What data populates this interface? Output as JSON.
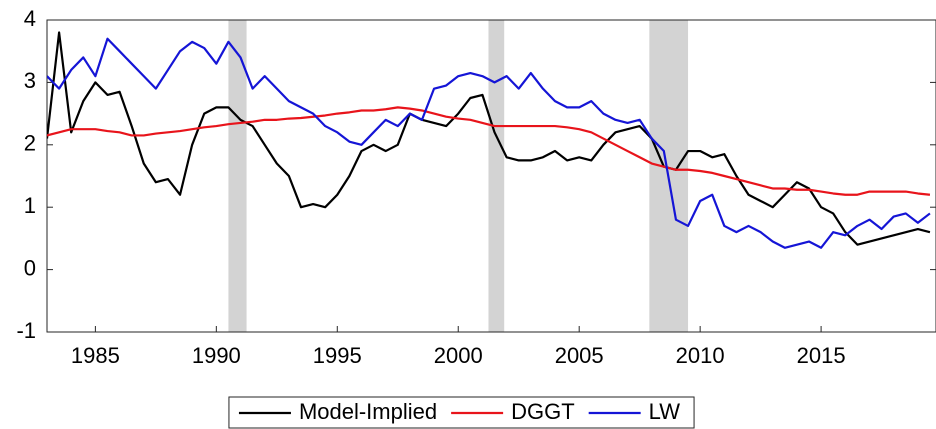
{
  "chart_data": {
    "type": "line",
    "x": [
      1983,
      1983.5,
      1984,
      1984.5,
      1985,
      1985.5,
      1986,
      1986.5,
      1987,
      1987.5,
      1988,
      1988.5,
      1989,
      1989.5,
      1990,
      1990.5,
      1991,
      1991.5,
      1992,
      1992.5,
      1993,
      1993.5,
      1994,
      1994.5,
      1995,
      1995.5,
      1996,
      1996.5,
      1997,
      1997.5,
      1998,
      1998.5,
      1999,
      1999.5,
      2000,
      2000.5,
      2001,
      2001.5,
      2002,
      2002.5,
      2003,
      2003.5,
      2004,
      2004.5,
      2005,
      2005.5,
      2006,
      2006.5,
      2007,
      2007.5,
      2008,
      2008.5,
      2009,
      2009.5,
      2010,
      2010.5,
      2011,
      2011.5,
      2012,
      2012.5,
      2013,
      2013.5,
      2014,
      2014.5,
      2015,
      2015.5,
      2016,
      2016.5,
      2017,
      2017.5,
      2018,
      2018.5,
      2019,
      2019.5
    ],
    "series": [
      {
        "name": "Model-Implied",
        "color": "#000000",
        "values": [
          2.1,
          3.8,
          2.2,
          2.7,
          3.0,
          2.8,
          2.85,
          2.3,
          1.7,
          1.4,
          1.45,
          1.2,
          2.0,
          2.5,
          2.6,
          2.6,
          2.4,
          2.3,
          2.0,
          1.7,
          1.5,
          1.0,
          1.05,
          1.0,
          1.2,
          1.5,
          1.9,
          2.0,
          1.9,
          2.0,
          2.5,
          2.4,
          2.35,
          2.3,
          2.5,
          2.75,
          2.8,
          2.2,
          1.8,
          1.75,
          1.75,
          1.8,
          1.9,
          1.75,
          1.8,
          1.75,
          2.0,
          2.2,
          2.25,
          2.3,
          2.1,
          1.65,
          1.6,
          1.9,
          1.9,
          1.8,
          1.85,
          1.5,
          1.2,
          1.1,
          1.0,
          1.2,
          1.4,
          1.3,
          1.0,
          0.9,
          0.6,
          0.4,
          0.45,
          0.5,
          0.55,
          0.6,
          0.65,
          0.6
        ]
      },
      {
        "name": "DGGT",
        "color": "#e8141b",
        "values": [
          2.15,
          2.2,
          2.25,
          2.25,
          2.25,
          2.22,
          2.2,
          2.15,
          2.15,
          2.18,
          2.2,
          2.22,
          2.25,
          2.28,
          2.3,
          2.33,
          2.35,
          2.37,
          2.4,
          2.4,
          2.42,
          2.43,
          2.45,
          2.47,
          2.5,
          2.52,
          2.55,
          2.55,
          2.57,
          2.6,
          2.58,
          2.55,
          2.5,
          2.45,
          2.42,
          2.4,
          2.35,
          2.3,
          2.3,
          2.3,
          2.3,
          2.3,
          2.3,
          2.28,
          2.25,
          2.2,
          2.1,
          2.0,
          1.9,
          1.8,
          1.7,
          1.65,
          1.6,
          1.6,
          1.58,
          1.55,
          1.5,
          1.45,
          1.4,
          1.35,
          1.3,
          1.3,
          1.28,
          1.28,
          1.25,
          1.22,
          1.2,
          1.2,
          1.25,
          1.25,
          1.25,
          1.25,
          1.22,
          1.2
        ]
      },
      {
        "name": "LW",
        "color": "#1515d6",
        "values": [
          3.1,
          2.9,
          3.2,
          3.4,
          3.1,
          3.7,
          3.5,
          3.3,
          3.1,
          2.9,
          3.2,
          3.5,
          3.65,
          3.55,
          3.3,
          3.65,
          3.4,
          2.9,
          3.1,
          2.9,
          2.7,
          2.6,
          2.5,
          2.3,
          2.2,
          2.05,
          2.0,
          2.2,
          2.4,
          2.3,
          2.5,
          2.4,
          2.9,
          2.95,
          3.1,
          3.15,
          3.1,
          3.0,
          3.1,
          2.9,
          3.15,
          2.9,
          2.7,
          2.6,
          2.6,
          2.7,
          2.5,
          2.4,
          2.35,
          2.4,
          2.1,
          1.9,
          0.8,
          0.7,
          1.1,
          1.2,
          0.7,
          0.6,
          0.7,
          0.6,
          0.45,
          0.35,
          0.4,
          0.45,
          0.35,
          0.6,
          0.55,
          0.7,
          0.8,
          0.65,
          0.85,
          0.9,
          0.75,
          0.9
        ]
      }
    ],
    "shaded_regions": [
      [
        1990.5,
        1991.25
      ],
      [
        2001.25,
        2001.9
      ],
      [
        2007.9,
        2009.5
      ]
    ],
    "shade_color": "#d3d3d3",
    "xlim": [
      1983,
      2019.75
    ],
    "xticks": [
      1985,
      1990,
      1995,
      2000,
      2005,
      2010,
      2015
    ],
    "ylim": [
      -1,
      4
    ],
    "yticks": [
      -1,
      0,
      1,
      2,
      3,
      4
    ],
    "legend": "bottom"
  }
}
